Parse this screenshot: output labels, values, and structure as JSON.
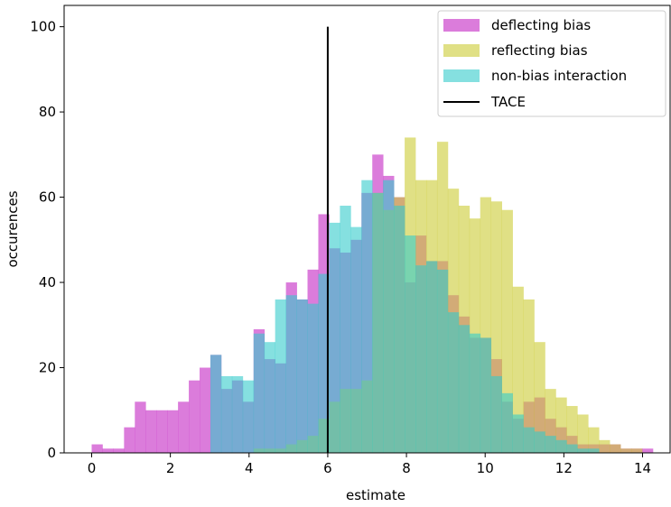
{
  "chart_data": {
    "type": "histogram",
    "xlabel": "estimate",
    "ylabel": "occurences",
    "xlim": [
      -0.7,
      14.7
    ],
    "ylim": [
      0,
      105
    ],
    "xticks": [
      0,
      2,
      4,
      6,
      8,
      10,
      12,
      14
    ],
    "yticks": [
      0,
      20,
      40,
      60,
      80,
      100
    ],
    "grid": false,
    "legend_position": "top-right",
    "bin_start": 0,
    "bin_width": 0.2742857,
    "series": [
      {
        "name": "deflecting bias",
        "color": "#cc44cc",
        "opacity": 0.7,
        "values": [
          2,
          1,
          1,
          6,
          12,
          10,
          10,
          10,
          12,
          17,
          20,
          23,
          15,
          17,
          12,
          29,
          22,
          21,
          40,
          36,
          43,
          56,
          48,
          47,
          50,
          61,
          70,
          65,
          60,
          40,
          51,
          45,
          45,
          37,
          32,
          27,
          27,
          22,
          12,
          8,
          12,
          13,
          8,
          6,
          4,
          2,
          2,
          2,
          2,
          1,
          1,
          1
        ]
      },
      {
        "name": "reflecting bias",
        "color": "#cccc33",
        "opacity": 0.6,
        "values": [
          0,
          0,
          0,
          0,
          0,
          0,
          0,
          0,
          0,
          0,
          0,
          0,
          0,
          0,
          0,
          1,
          1,
          1,
          2,
          3,
          4,
          8,
          12,
          15,
          15,
          17,
          61,
          57,
          60,
          74,
          64,
          64,
          73,
          62,
          58,
          55,
          60,
          59,
          57,
          39,
          36,
          26,
          15,
          13,
          11,
          9,
          6,
          3,
          2,
          1,
          1,
          0
        ]
      },
      {
        "name": "non-bias interaction",
        "color": "#33cccc",
        "opacity": 0.6,
        "values": [
          0,
          0,
          0,
          0,
          0,
          0,
          0,
          0,
          0,
          0,
          0,
          23,
          18,
          18,
          17,
          28,
          26,
          36,
          37,
          36,
          35,
          42,
          54,
          58,
          53,
          64,
          61,
          64,
          58,
          51,
          44,
          45,
          43,
          33,
          30,
          28,
          27,
          18,
          14,
          9,
          6,
          5,
          4,
          3,
          2,
          1,
          1,
          0,
          0,
          0,
          0,
          0
        ]
      }
    ],
    "vlines": [
      {
        "name": "TACE",
        "x": 6,
        "ymin": 0,
        "ymax": 100,
        "color": "#000000"
      }
    ]
  }
}
